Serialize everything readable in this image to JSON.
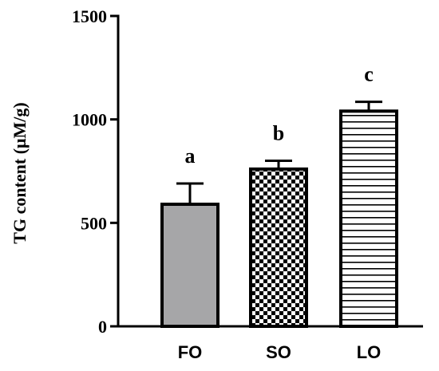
{
  "chart_data": {
    "type": "bar",
    "title": "",
    "xlabel": "",
    "ylabel": "TG content (μM/g)",
    "ylim": [
      0,
      1500
    ],
    "yticks": [
      0,
      500,
      1000,
      1500
    ],
    "categories": [
      "FO",
      "SO",
      "LO"
    ],
    "values": [
      590,
      760,
      1040
    ],
    "errors": [
      100,
      40,
      45
    ],
    "significance_letters": [
      "a",
      "b",
      "c"
    ],
    "bar_fills": [
      "solid-gray",
      "checkerboard",
      "horizontal-stripes"
    ],
    "colors": {
      "gray_fill": "#a6a6a8",
      "stroke": "#000000"
    },
    "grid": false,
    "legend": "none"
  }
}
